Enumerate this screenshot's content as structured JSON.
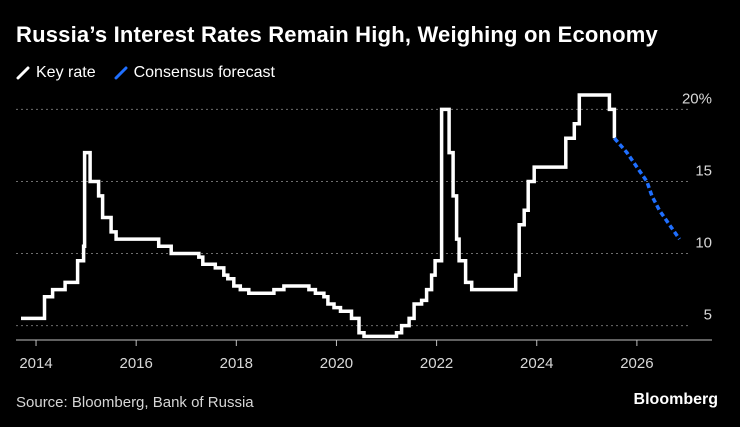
{
  "chart_data": {
    "type": "line",
    "title": "Russia’s Interest Rates Remain High, Weighing on Economy",
    "xlabel": "",
    "ylabel": "",
    "xlim": [
      2013.6,
      2027.5
    ],
    "ylim": [
      4,
      21
    ],
    "x_ticks": [
      2014,
      2016,
      2018,
      2020,
      2022,
      2024,
      2026
    ],
    "x_tick_labels": [
      "2014",
      "2016",
      "2018",
      "2020",
      "2022",
      "2024",
      "2026"
    ],
    "y_ticks": [
      5,
      10,
      15,
      20
    ],
    "y_tick_labels": [
      "5",
      "10",
      "15",
      "20%"
    ],
    "grid": "horizontal dotted",
    "legend": "top-left",
    "colors": {
      "key_rate": "#ffffff",
      "forecast": "#1f6fff",
      "grid": "#6e6e6e"
    },
    "series": [
      {
        "name": "Key rate",
        "style": "step",
        "points": [
          [
            2013.7,
            5.5
          ],
          [
            2014.17,
            7.0
          ],
          [
            2014.33,
            7.5
          ],
          [
            2014.58,
            8.0
          ],
          [
            2014.83,
            9.5
          ],
          [
            2014.95,
            10.5
          ],
          [
            2014.97,
            17.0
          ],
          [
            2015.08,
            15.0
          ],
          [
            2015.25,
            14.0
          ],
          [
            2015.33,
            12.5
          ],
          [
            2015.5,
            11.5
          ],
          [
            2015.6,
            11.0
          ],
          [
            2016.45,
            10.5
          ],
          [
            2016.7,
            10.0
          ],
          [
            2017.25,
            9.75
          ],
          [
            2017.33,
            9.25
          ],
          [
            2017.58,
            9.0
          ],
          [
            2017.75,
            8.5
          ],
          [
            2017.83,
            8.25
          ],
          [
            2017.95,
            7.75
          ],
          [
            2018.08,
            7.5
          ],
          [
            2018.25,
            7.25
          ],
          [
            2018.75,
            7.5
          ],
          [
            2018.95,
            7.75
          ],
          [
            2019.45,
            7.5
          ],
          [
            2019.58,
            7.25
          ],
          [
            2019.75,
            7.0
          ],
          [
            2019.83,
            6.5
          ],
          [
            2019.95,
            6.25
          ],
          [
            2020.08,
            6.0
          ],
          [
            2020.3,
            5.5
          ],
          [
            2020.45,
            4.5
          ],
          [
            2020.55,
            4.25
          ],
          [
            2021.2,
            4.5
          ],
          [
            2021.3,
            5.0
          ],
          [
            2021.45,
            5.5
          ],
          [
            2021.55,
            6.5
          ],
          [
            2021.7,
            6.75
          ],
          [
            2021.8,
            7.5
          ],
          [
            2021.9,
            8.5
          ],
          [
            2021.97,
            9.5
          ],
          [
            2022.1,
            20.0
          ],
          [
            2022.25,
            17.0
          ],
          [
            2022.33,
            14.0
          ],
          [
            2022.4,
            11.0
          ],
          [
            2022.45,
            9.5
          ],
          [
            2022.58,
            8.0
          ],
          [
            2022.7,
            7.5
          ],
          [
            2023.58,
            8.5
          ],
          [
            2023.65,
            12.0
          ],
          [
            2023.75,
            13.0
          ],
          [
            2023.83,
            15.0
          ],
          [
            2023.95,
            16.0
          ],
          [
            2024.58,
            18.0
          ],
          [
            2024.75,
            19.0
          ],
          [
            2024.85,
            21.0
          ],
          [
            2025.45,
            20.0
          ],
          [
            2025.55,
            18.0
          ]
        ]
      },
      {
        "name": "Consensus forecast",
        "style": "dashed",
        "points": [
          [
            2025.55,
            18.0
          ],
          [
            2025.8,
            17.0
          ],
          [
            2026.0,
            16.0
          ],
          [
            2026.2,
            15.0
          ],
          [
            2026.3,
            14.0
          ],
          [
            2026.45,
            13.0
          ],
          [
            2026.65,
            12.0
          ],
          [
            2026.85,
            11.0
          ]
        ]
      }
    ]
  },
  "header": {
    "title": "Russia’s Interest Rates Remain High, Weighing on Economy",
    "legend_key_rate": "Key rate",
    "legend_forecast": "Consensus forecast"
  },
  "footer": {
    "source": "Source: Bloomberg, Bank of Russia",
    "brand": "Bloomberg"
  }
}
